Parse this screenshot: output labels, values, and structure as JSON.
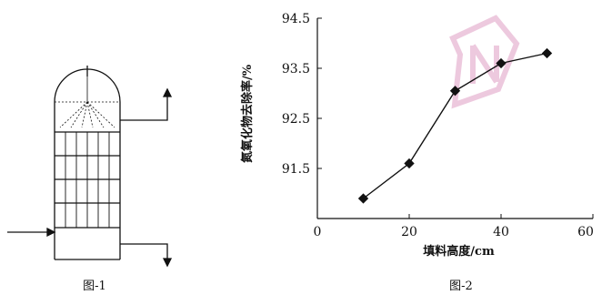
{
  "figure1": {
    "caption": "图-1"
  },
  "figure2": {
    "caption": "图-2"
  },
  "chart_data": {
    "type": "line",
    "xlabel": "填料高度/cm",
    "ylabel": "氮氧化物去除率/%",
    "xlim": [
      0,
      60
    ],
    "ylim": [
      90.5,
      94.5
    ],
    "xticks": [
      0,
      20,
      40,
      60
    ],
    "yticks": [
      91.5,
      92.5,
      93.5,
      94.5
    ],
    "x": [
      10,
      20,
      30,
      40,
      50
    ],
    "y": [
      90.9,
      91.6,
      93.05,
      93.6,
      93.8
    ],
    "grid": false,
    "line_color": "#111111"
  },
  "colors": {
    "ink": "#111111",
    "watermark": "#d9a6c4"
  }
}
